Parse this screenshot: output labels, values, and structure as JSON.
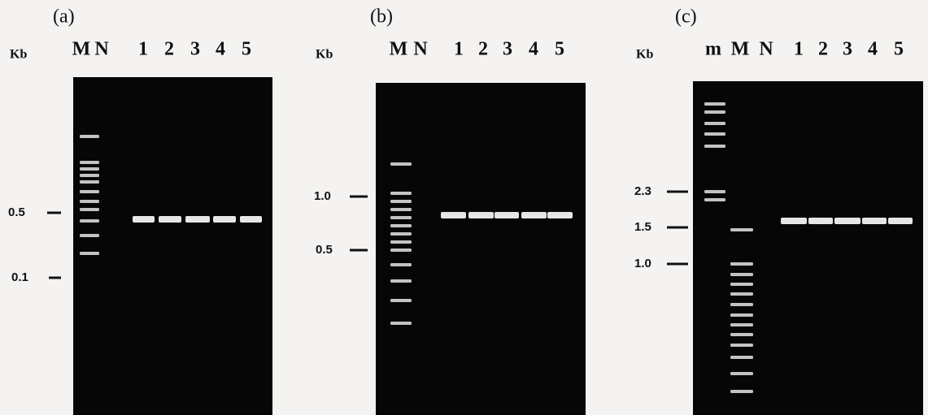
{
  "panels": [
    {
      "label": "(a)",
      "unit": "Kb",
      "lanes": [
        "M",
        "N",
        "1",
        "2",
        "3",
        "4",
        "5"
      ],
      "markers": [
        "0.5",
        "0.1"
      ]
    },
    {
      "label": "(b)",
      "unit": "Kb",
      "lanes": [
        "M",
        "N",
        "1",
        "2",
        "3",
        "4",
        "5"
      ],
      "markers": [
        "1.0",
        "0.5"
      ]
    },
    {
      "label": "(c)",
      "unit": "Kb",
      "lanes": [
        "m",
        "M",
        "N",
        "1",
        "2",
        "3",
        "4",
        "5"
      ],
      "markers": [
        "2.3",
        "1.5",
        "1.0"
      ]
    }
  ]
}
